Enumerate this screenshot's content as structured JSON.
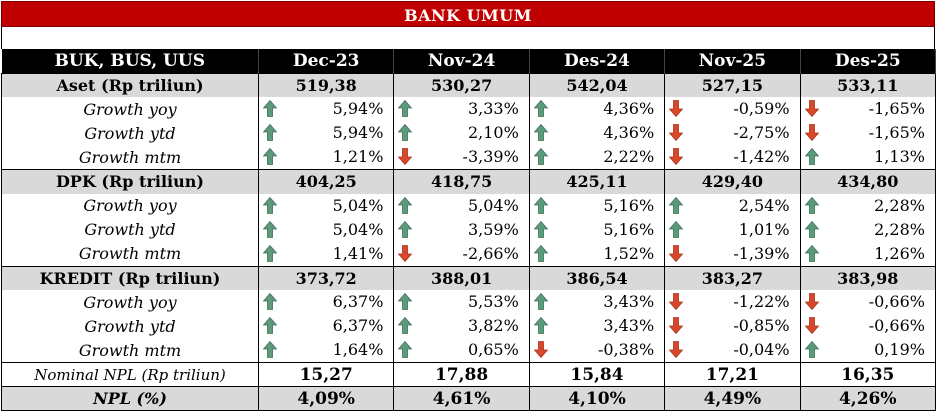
{
  "title": "BANK UMUM",
  "columns": [
    "BUK, BUS, UUS",
    "Dec-23",
    "Nov-24",
    "Des-24",
    "Nov-25",
    "Des-25"
  ],
  "colors": {
    "banner": "#c00000",
    "header": "#000000",
    "section": "#d9d9d9",
    "up": "#5b9a7a",
    "down": "#d9472b"
  },
  "sections": [
    {
      "label": "Aset (Rp triliun)",
      "values": [
        "519,38",
        "530,27",
        "542,04",
        "527,15",
        "533,11"
      ],
      "rows": [
        {
          "label": "Growth yoy",
          "values": [
            "5,94%",
            "3,33%",
            "4,36%",
            "-0,59%",
            "-1,65%"
          ],
          "dirs": [
            "up",
            "up",
            "up",
            "down",
            "down"
          ]
        },
        {
          "label": "Growth ytd",
          "values": [
            "5,94%",
            "2,10%",
            "4,36%",
            "-2,75%",
            "-1,65%"
          ],
          "dirs": [
            "up",
            "up",
            "up",
            "down",
            "down"
          ]
        },
        {
          "label": "Growth mtm",
          "values": [
            "1,21%",
            "-3,39%",
            "2,22%",
            "-1,42%",
            "1,13%"
          ],
          "dirs": [
            "up",
            "down",
            "up",
            "down",
            "up"
          ]
        }
      ]
    },
    {
      "label": "DPK (Rp triliun)",
      "values": [
        "404,25",
        "418,75",
        "425,11",
        "429,40",
        "434,80"
      ],
      "rows": [
        {
          "label": "Growth yoy",
          "values": [
            "5,04%",
            "5,04%",
            "5,16%",
            "2,54%",
            "2,28%"
          ],
          "dirs": [
            "up",
            "up",
            "up",
            "up",
            "up"
          ]
        },
        {
          "label": "Growth ytd",
          "values": [
            "5,04%",
            "3,59%",
            "5,16%",
            "1,01%",
            "2,28%"
          ],
          "dirs": [
            "up",
            "up",
            "up",
            "up",
            "up"
          ]
        },
        {
          "label": "Growth mtm",
          "values": [
            "1,41%",
            "-2,66%",
            "1,52%",
            "-1,39%",
            "1,26%"
          ],
          "dirs": [
            "up",
            "down",
            "up",
            "down",
            "up"
          ]
        }
      ]
    },
    {
      "label": "KREDIT  (Rp triliun)",
      "values": [
        "373,72",
        "388,01",
        "386,54",
        "383,27",
        "383,98"
      ],
      "rows": [
        {
          "label": "Growth yoy",
          "values": [
            "6,37%",
            "5,53%",
            "3,43%",
            "-1,22%",
            "-0,66%"
          ],
          "dirs": [
            "up",
            "up",
            "up",
            "down",
            "down"
          ]
        },
        {
          "label": "Growth ytd",
          "values": [
            "6,37%",
            "3,82%",
            "3,43%",
            "-0,85%",
            "-0,66%"
          ],
          "dirs": [
            "up",
            "up",
            "up",
            "down",
            "down"
          ]
        },
        {
          "label": "Growth mtm",
          "values": [
            "1,64%",
            "0,65%",
            "-0,38%",
            "-0,04%",
            "0,19%"
          ],
          "dirs": [
            "up",
            "up",
            "down",
            "down",
            "up"
          ]
        }
      ]
    }
  ],
  "nominal_npl": {
    "label": "Nominal NPL  (Rp triliun)",
    "values": [
      "15,27",
      "17,88",
      "15,84",
      "17,21",
      "16,35"
    ]
  },
  "npl_ratio": {
    "label": "NPL (%)",
    "values": [
      "4,09%",
      "4,61%",
      "4,10%",
      "4,49%",
      "4,26%"
    ]
  }
}
